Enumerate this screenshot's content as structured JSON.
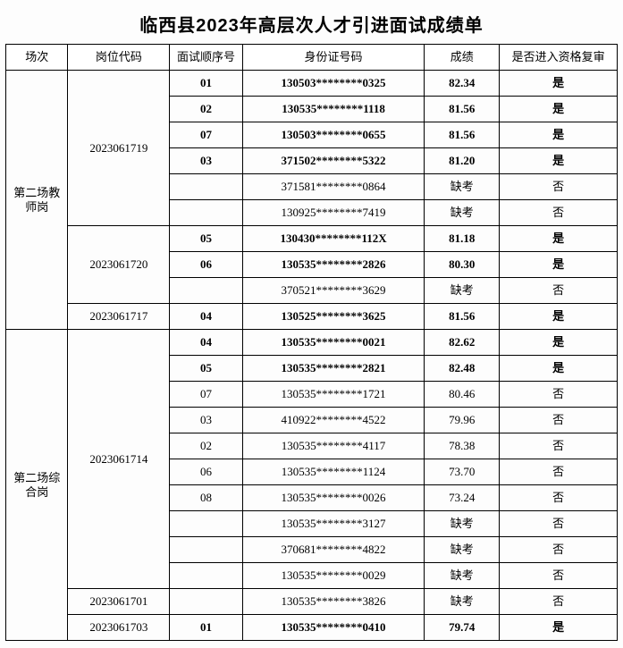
{
  "title": "临西县2023年高层次人才引进面试成绩单",
  "headers": {
    "session": "场次",
    "code": "岗位代码",
    "order": "面试顺序号",
    "id": "身份证号码",
    "score": "成绩",
    "pass": "是否进入资格复审"
  },
  "sessions": [
    {
      "name": "第二场教\n师岗",
      "rowspan": 10,
      "groups": [
        {
          "code": "2023061719",
          "rowspan": 6,
          "rows": [
            {
              "order": "01",
              "id": "130503********0325",
              "score": "82.34",
              "pass": "是",
              "bold": true
            },
            {
              "order": "02",
              "id": "130535********1118",
              "score": "81.56",
              "pass": "是",
              "bold": true
            },
            {
              "order": "07",
              "id": "130503********0655",
              "score": "81.56",
              "pass": "是",
              "bold": true
            },
            {
              "order": "03",
              "id": "371502********5322",
              "score": "81.20",
              "pass": "是",
              "bold": true
            },
            {
              "order": "",
              "id": "371581********0864",
              "score": "缺考",
              "pass": "否",
              "bold": false
            },
            {
              "order": "",
              "id": "130925********7419",
              "score": "缺考",
              "pass": "否",
              "bold": false
            }
          ]
        },
        {
          "code": "2023061720",
          "rowspan": 3,
          "rows": [
            {
              "order": "05",
              "id": "130430********112X",
              "score": "81.18",
              "pass": "是",
              "bold": true
            },
            {
              "order": "06",
              "id": "130535********2826",
              "score": "80.30",
              "pass": "是",
              "bold": true
            },
            {
              "order": "",
              "id": "370521********3629",
              "score": "缺考",
              "pass": "否",
              "bold": false
            }
          ]
        },
        {
          "code": "2023061717",
          "rowspan": 1,
          "rows": [
            {
              "order": "04",
              "id": "130525********3625",
              "score": "81.56",
              "pass": "是",
              "bold": true
            }
          ]
        }
      ]
    },
    {
      "name": "第二场综\n合岗",
      "rowspan": 12,
      "groups": [
        {
          "code": "2023061714",
          "rowspan": 10,
          "rows": [
            {
              "order": "04",
              "id": "130535********0021",
              "score": "82.62",
              "pass": "是",
              "bold": true
            },
            {
              "order": "05",
              "id": "130535********2821",
              "score": "82.48",
              "pass": "是",
              "bold": true
            },
            {
              "order": "07",
              "id": "130535********1721",
              "score": "80.46",
              "pass": "否",
              "bold": false
            },
            {
              "order": "03",
              "id": "410922********4522",
              "score": "79.96",
              "pass": "否",
              "bold": false
            },
            {
              "order": "02",
              "id": "130535********4117",
              "score": "78.38",
              "pass": "否",
              "bold": false
            },
            {
              "order": "06",
              "id": "130535********1124",
              "score": "73.70",
              "pass": "否",
              "bold": false
            },
            {
              "order": "08",
              "id": "130535********0026",
              "score": "73.24",
              "pass": "否",
              "bold": false
            },
            {
              "order": "",
              "id": "130535********3127",
              "score": "缺考",
              "pass": "否",
              "bold": false
            },
            {
              "order": "",
              "id": "370681********4822",
              "score": "缺考",
              "pass": "否",
              "bold": false
            },
            {
              "order": "",
              "id": "130535********0029",
              "score": "缺考",
              "pass": "否",
              "bold": false
            }
          ]
        },
        {
          "code": "2023061701",
          "rowspan": 1,
          "rows": [
            {
              "order": "",
              "id": "130535********3826",
              "score": "缺考",
              "pass": "否",
              "bold": false
            }
          ]
        },
        {
          "code": "2023061703",
          "rowspan": 1,
          "rows": [
            {
              "order": "01",
              "id": "130535********0410",
              "score": "79.74",
              "pass": "是",
              "bold": true
            }
          ]
        }
      ]
    }
  ]
}
